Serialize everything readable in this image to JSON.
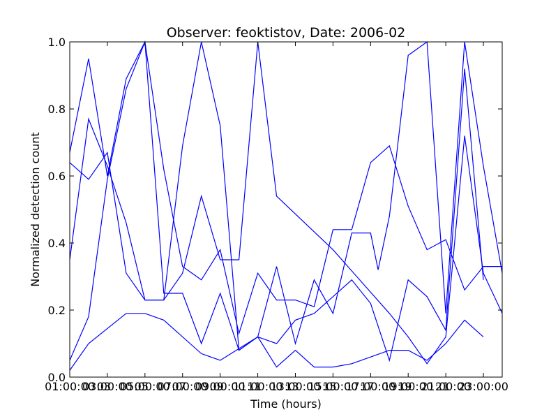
{
  "chart_data": {
    "type": "line",
    "title": "Observer: feoktistov, Date: 2006-02",
    "xlabel": "Time (hours)",
    "ylabel": "Normalized detection count",
    "xlim": [
      1,
      24
    ],
    "ylim": [
      0.0,
      1.0
    ],
    "grid": false,
    "line_color": "#0000ff",
    "x_ticks": [
      1,
      3,
      5,
      7,
      9,
      11,
      13,
      15,
      17,
      19,
      21,
      23
    ],
    "x_tick_labels": [
      "01:00:00",
      "03:00:00",
      "05:00:00",
      "07:00:00",
      "09:00:00",
      "11:00:00",
      "13:00:00",
      "15:00:00",
      "17:00:00",
      "19:00:00",
      "21:00:00",
      "23:00:00"
    ],
    "x_tick_labels_overlay": [
      "",
      "03",
      "05",
      "07",
      "09",
      "11",
      "13",
      "15",
      "17",
      "19",
      "21",
      "23:00:00"
    ],
    "y_ticks": [
      0.0,
      0.2,
      0.4,
      0.6,
      0.8,
      1.0
    ],
    "y_tick_labels": [
      "0.0",
      "0.2",
      "0.4",
      "0.6",
      "0.8",
      "1.0"
    ],
    "series": [
      {
        "name": "series-1",
        "points": [
          [
            1,
            0.67
          ],
          [
            2,
            0.95
          ],
          [
            3,
            0.6
          ],
          [
            4,
            0.89
          ],
          [
            5,
            1.0
          ],
          [
            6,
            0.62
          ],
          [
            7,
            0.33
          ],
          [
            8,
            0.29
          ],
          [
            9,
            0.38
          ],
          [
            10,
            0.13
          ],
          [
            11,
            0.31
          ],
          [
            12,
            0.23
          ],
          [
            13,
            0.23
          ],
          [
            14,
            0.21
          ],
          [
            15,
            0.44
          ],
          [
            16,
            0.44
          ],
          [
            17,
            0.64
          ],
          [
            18,
            0.69
          ],
          [
            19,
            0.51
          ],
          [
            20,
            0.38
          ],
          [
            21,
            0.41
          ],
          [
            22,
            0.26
          ],
          [
            23,
            0.33
          ],
          [
            24,
            0.33
          ]
        ]
      },
      {
        "name": "series-2",
        "points": [
          [
            1,
            0.35
          ],
          [
            2,
            0.77
          ],
          [
            3,
            0.63
          ],
          [
            4,
            0.46
          ],
          [
            5,
            0.23
          ],
          [
            6,
            0.23
          ],
          [
            7,
            0.69
          ],
          [
            8,
            1.0
          ],
          [
            9,
            0.75
          ],
          [
            10,
            0.08
          ],
          [
            11,
            0.12
          ],
          [
            12,
            0.03
          ],
          [
            13,
            0.08
          ],
          [
            14,
            0.03
          ],
          [
            15,
            0.03
          ],
          [
            16,
            0.04
          ],
          [
            17,
            0.06
          ],
          [
            18,
            0.08
          ],
          [
            19,
            0.08
          ],
          [
            20,
            0.05
          ],
          [
            21,
            0.1
          ],
          [
            22,
            0.17
          ],
          [
            23,
            0.12
          ]
        ]
      },
      {
        "name": "series-3",
        "points": [
          [
            1,
            0.64
          ],
          [
            2,
            0.59
          ],
          [
            3,
            0.67
          ],
          [
            4,
            0.31
          ],
          [
            5,
            0.23
          ],
          [
            6,
            0.23
          ],
          [
            7,
            0.31
          ],
          [
            8,
            0.54
          ],
          [
            9,
            0.35
          ],
          [
            10,
            0.35
          ],
          [
            11,
            1.0
          ],
          [
            12,
            0.54
          ],
          [
            15,
            0.38
          ],
          [
            18,
            0.19
          ],
          [
            19,
            0.12
          ],
          [
            20,
            0.04
          ],
          [
            21,
            0.12
          ],
          [
            22,
            0.72
          ],
          [
            23,
            0.31
          ],
          [
            24,
            0.19
          ]
        ]
      },
      {
        "name": "series-4",
        "points": [
          [
            1,
            0.05
          ],
          [
            2,
            0.18
          ],
          [
            3,
            0.59
          ],
          [
            4,
            0.86
          ],
          [
            5,
            1.0
          ],
          [
            6,
            0.25
          ],
          [
            7,
            0.25
          ],
          [
            8,
            0.1
          ],
          [
            9,
            0.25
          ],
          [
            10,
            0.08
          ],
          [
            11,
            0.12
          ],
          [
            12,
            0.1
          ],
          [
            13,
            0.17
          ],
          [
            14,
            0.19
          ],
          [
            15,
            0.24
          ],
          [
            16,
            0.29
          ],
          [
            17,
            0.22
          ],
          [
            18,
            0.05
          ],
          [
            19,
            0.29
          ],
          [
            20,
            0.24
          ],
          [
            21,
            0.14
          ],
          [
            22,
            0.92
          ],
          [
            23,
            0.29
          ]
        ]
      },
      {
        "name": "series-5",
        "points": [
          [
            1,
            0.02
          ],
          [
            2,
            0.1
          ],
          [
            4,
            0.19
          ],
          [
            5,
            0.19
          ],
          [
            6,
            0.17
          ],
          [
            8,
            0.07
          ],
          [
            9,
            0.05
          ],
          [
            11,
            0.12
          ],
          [
            12,
            0.33
          ],
          [
            13,
            0.1
          ],
          [
            14,
            0.29
          ],
          [
            15,
            0.19
          ],
          [
            16,
            0.43
          ],
          [
            17,
            0.43
          ],
          [
            17.4,
            0.32
          ],
          [
            18,
            0.48
          ],
          [
            19,
            0.96
          ],
          [
            20,
            1.0
          ],
          [
            21,
            0.19
          ],
          [
            22,
            1.0
          ],
          [
            23,
            0.63
          ],
          [
            24,
            0.31
          ]
        ]
      }
    ]
  }
}
